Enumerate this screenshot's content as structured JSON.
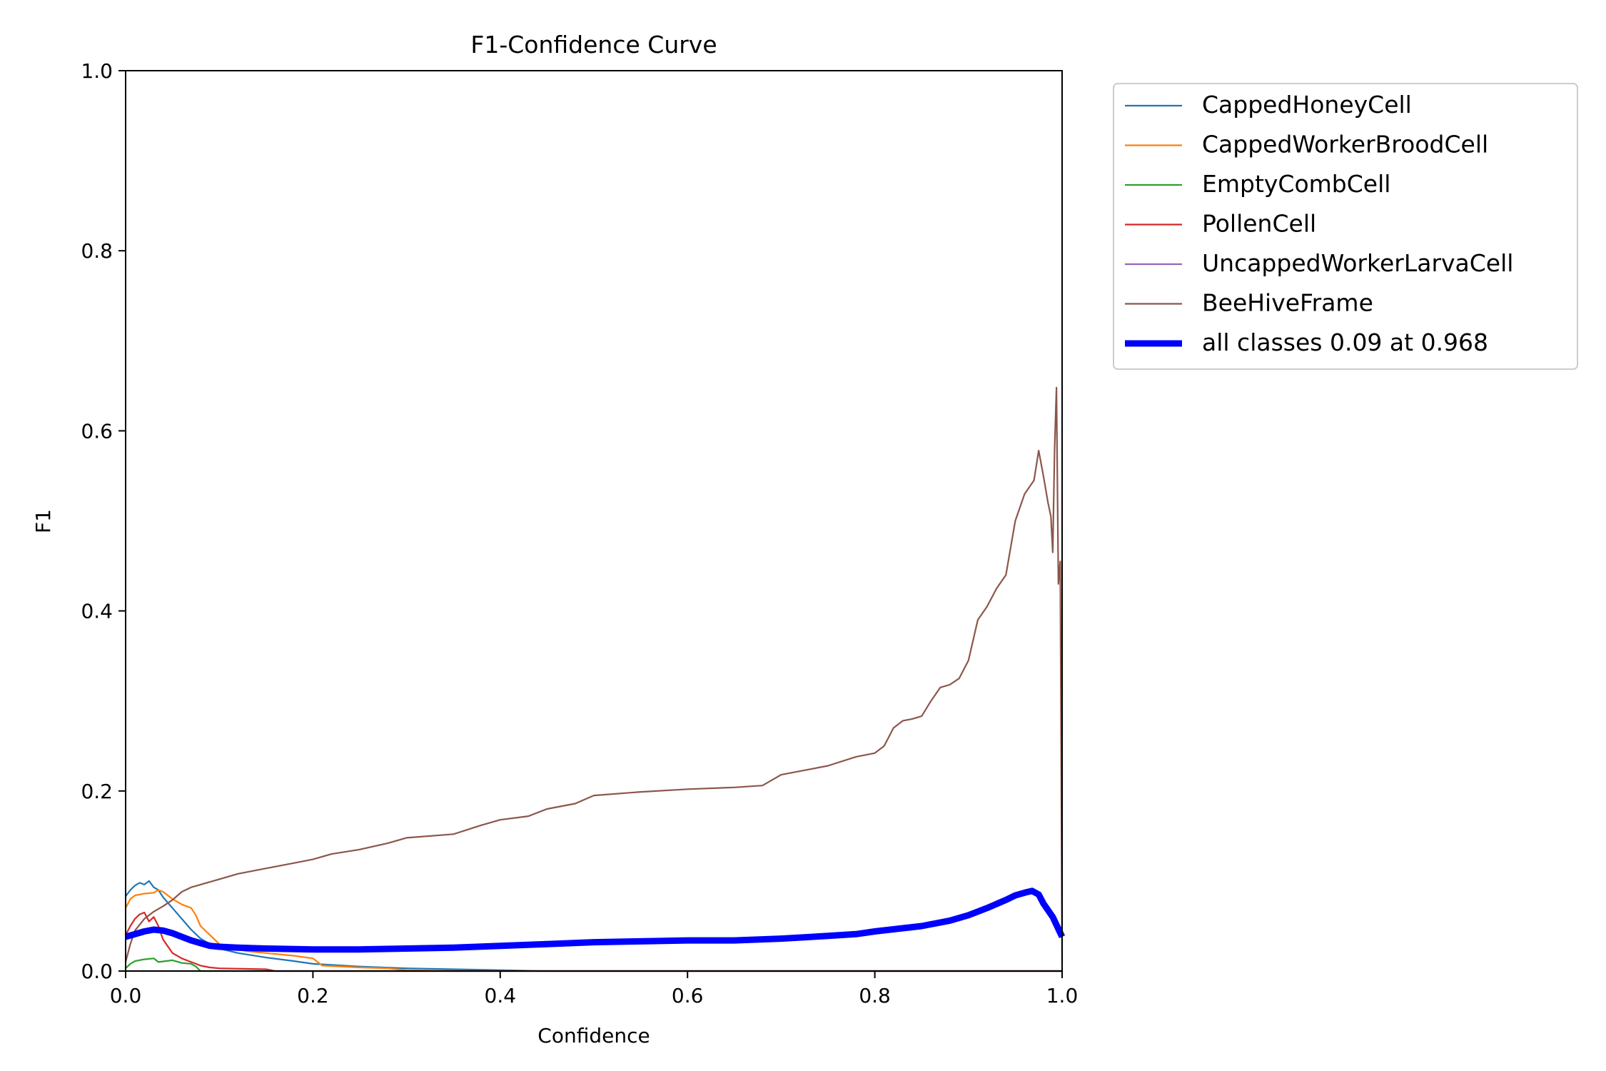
{
  "chart_data": {
    "type": "line",
    "title": "F1-Confidence Curve",
    "xlabel": "Confidence",
    "ylabel": "F1",
    "xlim": [
      0,
      1
    ],
    "ylim": [
      0,
      1
    ],
    "xticks": [
      "0.0",
      "0.2",
      "0.4",
      "0.6",
      "0.8",
      "1.0"
    ],
    "yticks": [
      "0.0",
      "0.2",
      "0.4",
      "0.6",
      "0.8",
      "1.0"
    ],
    "grid": false,
    "legend_position": "outside-top-right",
    "series": [
      {
        "name": "CappedHoneyCell",
        "color": "#1f77b4",
        "points": [
          [
            0,
            0.083
          ],
          [
            0.005,
            0.09
          ],
          [
            0.01,
            0.095
          ],
          [
            0.015,
            0.098
          ],
          [
            0.02,
            0.096
          ],
          [
            0.025,
            0.1
          ],
          [
            0.03,
            0.093
          ],
          [
            0.035,
            0.09
          ],
          [
            0.04,
            0.082
          ],
          [
            0.05,
            0.07
          ],
          [
            0.06,
            0.058
          ],
          [
            0.07,
            0.046
          ],
          [
            0.08,
            0.036
          ],
          [
            0.09,
            0.03
          ],
          [
            0.1,
            0.025
          ],
          [
            0.12,
            0.02
          ],
          [
            0.15,
            0.015
          ],
          [
            0.18,
            0.011
          ],
          [
            0.2,
            0.008
          ],
          [
            0.25,
            0.005
          ],
          [
            0.3,
            0.003
          ],
          [
            0.35,
            0.002
          ],
          [
            0.4,
            0.001
          ],
          [
            0.45,
            0
          ],
          [
            1.0,
            0
          ]
        ]
      },
      {
        "name": "CappedWorkerBroodCell",
        "color": "#ff7f0e",
        "points": [
          [
            0,
            0.07
          ],
          [
            0.005,
            0.08
          ],
          [
            0.01,
            0.084
          ],
          [
            0.02,
            0.086
          ],
          [
            0.03,
            0.087
          ],
          [
            0.035,
            0.09
          ],
          [
            0.04,
            0.088
          ],
          [
            0.05,
            0.08
          ],
          [
            0.06,
            0.074
          ],
          [
            0.07,
            0.07
          ],
          [
            0.075,
            0.062
          ],
          [
            0.08,
            0.05
          ],
          [
            0.09,
            0.04
          ],
          [
            0.1,
            0.03
          ],
          [
            0.11,
            0.026
          ],
          [
            0.13,
            0.022
          ],
          [
            0.15,
            0.02
          ],
          [
            0.18,
            0.017
          ],
          [
            0.2,
            0.014
          ],
          [
            0.21,
            0.006
          ],
          [
            0.25,
            0.004
          ],
          [
            0.28,
            0.003
          ],
          [
            0.3,
            0.001
          ],
          [
            0.35,
            0
          ],
          [
            1.0,
            0
          ]
        ]
      },
      {
        "name": "EmptyCombCell",
        "color": "#2ca02c",
        "points": [
          [
            0,
            0.003
          ],
          [
            0.005,
            0.008
          ],
          [
            0.01,
            0.011
          ],
          [
            0.02,
            0.013
          ],
          [
            0.03,
            0.014
          ],
          [
            0.035,
            0.01
          ],
          [
            0.05,
            0.012
          ],
          [
            0.06,
            0.009
          ],
          [
            0.07,
            0.008
          ],
          [
            0.075,
            0.005
          ],
          [
            0.08,
            0
          ],
          [
            1.0,
            0
          ]
        ]
      },
      {
        "name": "PollenCell",
        "color": "#d62728",
        "points": [
          [
            0,
            0.04
          ],
          [
            0.005,
            0.05
          ],
          [
            0.01,
            0.058
          ],
          [
            0.015,
            0.063
          ],
          [
            0.02,
            0.065
          ],
          [
            0.025,
            0.055
          ],
          [
            0.03,
            0.06
          ],
          [
            0.035,
            0.05
          ],
          [
            0.04,
            0.035
          ],
          [
            0.05,
            0.02
          ],
          [
            0.06,
            0.014
          ],
          [
            0.07,
            0.01
          ],
          [
            0.08,
            0.006
          ],
          [
            0.09,
            0.004
          ],
          [
            0.1,
            0.003
          ],
          [
            0.15,
            0.002
          ],
          [
            0.16,
            0
          ],
          [
            1.0,
            0
          ]
        ]
      },
      {
        "name": "UncappedWorkerLarvaCell",
        "color": "#9467bd",
        "points": [
          [
            0,
            0
          ],
          [
            1.0,
            0
          ]
        ]
      },
      {
        "name": "BeeHiveFrame",
        "color": "#8c564b",
        "points": [
          [
            0,
            0.01
          ],
          [
            0.005,
            0.03
          ],
          [
            0.01,
            0.045
          ],
          [
            0.02,
            0.058
          ],
          [
            0.03,
            0.066
          ],
          [
            0.04,
            0.072
          ],
          [
            0.05,
            0.079
          ],
          [
            0.06,
            0.088
          ],
          [
            0.07,
            0.093
          ],
          [
            0.08,
            0.096
          ],
          [
            0.1,
            0.102
          ],
          [
            0.12,
            0.108
          ],
          [
            0.15,
            0.114
          ],
          [
            0.18,
            0.12
          ],
          [
            0.2,
            0.124
          ],
          [
            0.22,
            0.13
          ],
          [
            0.25,
            0.135
          ],
          [
            0.28,
            0.142
          ],
          [
            0.3,
            0.148
          ],
          [
            0.35,
            0.152
          ],
          [
            0.38,
            0.162
          ],
          [
            0.4,
            0.168
          ],
          [
            0.43,
            0.172
          ],
          [
            0.45,
            0.18
          ],
          [
            0.48,
            0.186
          ],
          [
            0.5,
            0.195
          ],
          [
            0.55,
            0.199
          ],
          [
            0.6,
            0.202
          ],
          [
            0.65,
            0.204
          ],
          [
            0.68,
            0.206
          ],
          [
            0.7,
            0.218
          ],
          [
            0.72,
            0.222
          ],
          [
            0.75,
            0.228
          ],
          [
            0.78,
            0.238
          ],
          [
            0.8,
            0.242
          ],
          [
            0.81,
            0.25
          ],
          [
            0.82,
            0.27
          ],
          [
            0.83,
            0.278
          ],
          [
            0.84,
            0.28
          ],
          [
            0.85,
            0.283
          ],
          [
            0.86,
            0.3
          ],
          [
            0.87,
            0.315
          ],
          [
            0.88,
            0.318
          ],
          [
            0.89,
            0.325
          ],
          [
            0.9,
            0.345
          ],
          [
            0.91,
            0.39
          ],
          [
            0.92,
            0.405
          ],
          [
            0.93,
            0.425
          ],
          [
            0.94,
            0.44
          ],
          [
            0.95,
            0.5
          ],
          [
            0.96,
            0.53
          ],
          [
            0.97,
            0.545
          ],
          [
            0.975,
            0.578
          ],
          [
            0.98,
            0.55
          ],
          [
            0.985,
            0.52
          ],
          [
            0.988,
            0.505
          ],
          [
            0.99,
            0.465
          ],
          [
            0.992,
            0.58
          ],
          [
            0.994,
            0.648
          ],
          [
            0.996,
            0.43
          ],
          [
            0.998,
            0.455
          ],
          [
            1.0,
            0.01
          ]
        ]
      },
      {
        "name": "all classes 0.09 at 0.968",
        "color": "#0000ff",
        "bold": true,
        "points": [
          [
            0,
            0.038
          ],
          [
            0.01,
            0.041
          ],
          [
            0.02,
            0.044
          ],
          [
            0.03,
            0.046
          ],
          [
            0.04,
            0.045
          ],
          [
            0.05,
            0.042
          ],
          [
            0.06,
            0.038
          ],
          [
            0.07,
            0.034
          ],
          [
            0.08,
            0.031
          ],
          [
            0.09,
            0.028
          ],
          [
            0.1,
            0.027
          ],
          [
            0.12,
            0.026
          ],
          [
            0.15,
            0.025
          ],
          [
            0.2,
            0.024
          ],
          [
            0.25,
            0.024
          ],
          [
            0.3,
            0.025
          ],
          [
            0.35,
            0.026
          ],
          [
            0.4,
            0.028
          ],
          [
            0.45,
            0.03
          ],
          [
            0.5,
            0.032
          ],
          [
            0.55,
            0.033
          ],
          [
            0.6,
            0.034
          ],
          [
            0.65,
            0.034
          ],
          [
            0.7,
            0.036
          ],
          [
            0.75,
            0.039
          ],
          [
            0.78,
            0.041
          ],
          [
            0.8,
            0.044
          ],
          [
            0.85,
            0.05
          ],
          [
            0.88,
            0.056
          ],
          [
            0.9,
            0.062
          ],
          [
            0.92,
            0.07
          ],
          [
            0.94,
            0.079
          ],
          [
            0.95,
            0.084
          ],
          [
            0.96,
            0.087
          ],
          [
            0.968,
            0.089
          ],
          [
            0.975,
            0.085
          ],
          [
            0.98,
            0.075
          ],
          [
            0.99,
            0.06
          ],
          [
            1.0,
            0.038
          ]
        ]
      }
    ]
  }
}
